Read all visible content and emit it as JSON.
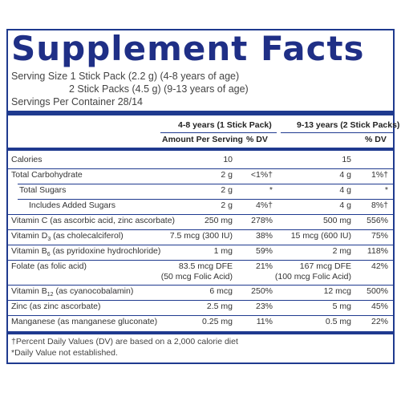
{
  "title": "Supplement Facts",
  "serving": {
    "line1": "Serving Size   1 Stick Pack (2.2 g) (4-8 years of age)",
    "line2": "2 Stick Packs (4.5 g) (9-13 years of age)",
    "line3": "Servings Per Container 28/14"
  },
  "headers": {
    "group1": "4-8 years (1 Stick Pack)",
    "group2": "9-13 years (2 Stick Packs)",
    "amount": "Amount Per Serving",
    "dv": "% DV"
  },
  "rows": [
    {
      "name": "Calories",
      "a1": "10",
      "d1": "",
      "a2": "15",
      "d2": ""
    },
    {
      "name": "Total Carbohydrate",
      "a1": "2 g",
      "d1": "<1%†",
      "a2": "4 g",
      "d2": "1%†"
    },
    {
      "name": "Total Sugars",
      "a1": "2 g",
      "d1": "*",
      "a2": "4 g",
      "d2": "*"
    },
    {
      "name": "Includes Added Sugars",
      "a1": "2 g",
      "d1": "4%†",
      "a2": "4 g",
      "d2": "8%†"
    },
    {
      "name": "Vitamin C (as ascorbic acid, zinc ascorbate)",
      "a1": "250 mg",
      "d1": "278%",
      "a2": "500 mg",
      "d2": "556%"
    },
    {
      "name_pre": "Vitamin D",
      "name_sub": "3",
      "name_post": " (as cholecalciferol)",
      "a1": "7.5 mcg (300 IU)",
      "d1": "38%",
      "a2": "15 mcg (600 IU)",
      "d2": "75%"
    },
    {
      "name_pre": "Vitamin B",
      "name_sub": "6",
      "name_post": " (as pyridoxine hydrochloride)",
      "a1": "1 mg",
      "d1": "59%",
      "a2": "2 mg",
      "d2": "118%"
    },
    {
      "name": "Folate (as folic acid)",
      "a1": "83.5 mcg DFE",
      "a1b": "(50 mcg Folic Acid)",
      "d1": "21%",
      "a2": "167 mcg DFE",
      "a2b": "(100 mcg Folic Acid)",
      "d2": "42%"
    },
    {
      "name_pre": "Vitamin B",
      "name_sub": "12",
      "name_post": " (as cyanocobalamin)",
      "a1": "6 mcg",
      "d1": "250%",
      "a2": "12 mcg",
      "d2": "500%"
    },
    {
      "name": "Zinc (as zinc ascorbate)",
      "a1": "2.5 mg",
      "d1": "23%",
      "a2": "5 mg",
      "d2": "45%"
    },
    {
      "name": "Manganese (as manganese gluconate)",
      "a1": "0.25 mg",
      "d1": "11%",
      "a2": "0.5 mg",
      "d2": "22%"
    }
  ],
  "footnotes": {
    "line1": "†Percent Daily Values (DV) are based on a 2,000 calorie diet",
    "line2": "*Daily Value not established."
  },
  "colors": {
    "accent": "#1f3a8f",
    "title": "#1f2f86"
  }
}
